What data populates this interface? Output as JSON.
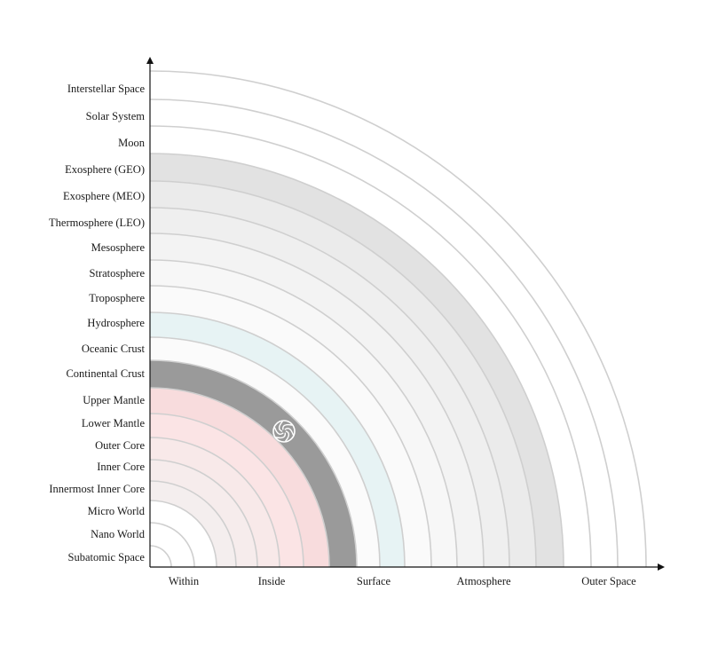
{
  "layers": [
    {
      "label": "Subatomic Space",
      "fill": "#ffffff"
    },
    {
      "label": "Nano World",
      "fill": "#ffffff"
    },
    {
      "label": "Micro World",
      "fill": "#ffffff"
    },
    {
      "label": "Innermost Inner Core",
      "fill": "#f4eeee"
    },
    {
      "label": "Inner Core",
      "fill": "#f6ecec"
    },
    {
      "label": "Outer Core",
      "fill": "#f8e9e9"
    },
    {
      "label": "Lower Mantle",
      "fill": "#fbe4e5"
    },
    {
      "label": "Upper Mantle",
      "fill": "#f8dcdd"
    },
    {
      "label": "Continental Crust",
      "fill": "#9a9a9a"
    },
    {
      "label": "Oceanic Crust",
      "fill": "#fbfbfb"
    },
    {
      "label": "Hydrosphere",
      "fill": "#e7f3f4"
    },
    {
      "label": "Troposphere",
      "fill": "#fafafa"
    },
    {
      "label": "Stratosphere",
      "fill": "#f7f7f7"
    },
    {
      "label": "Mesosphere",
      "fill": "#f3f3f3"
    },
    {
      "label": "Thermosphere (LEO)",
      "fill": "#efefef"
    },
    {
      "label": "Exosphere (MEO)",
      "fill": "#ebebeb"
    },
    {
      "label": "Exosphere (GEO)",
      "fill": "#e2e2e2"
    },
    {
      "label": "Moon",
      "fill": "#ffffff"
    },
    {
      "label": "Solar System",
      "fill": "#ffffff"
    },
    {
      "label": "Interstellar Space",
      "fill": "#ffffff"
    }
  ],
  "x_categories": [
    "Within",
    "Inside",
    "Surface",
    "Atmosphere",
    "Outer Space"
  ],
  "colors": {
    "ring_stroke": "#cfcfcf",
    "axis": "#111111",
    "marker": "#ffffff"
  },
  "marker_icon": "spiral-swirl-icon"
}
